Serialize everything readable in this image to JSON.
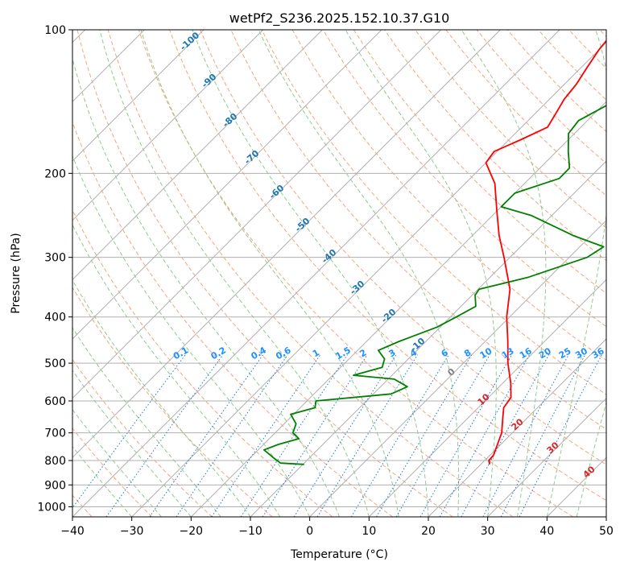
{
  "chart_data": {
    "type": "line",
    "subtype": "skew-t log-p",
    "title": "wetPf2_S236.2025.152.10.37.G10",
    "xlabel": "Temperature (°C)",
    "ylabel": "Pressure (hPa)",
    "xlim": [
      -40,
      50
    ],
    "ylim": [
      1050,
      100
    ],
    "yscale": "log",
    "grid": true,
    "x_ticks": [
      "−40",
      "−30",
      "−20",
      "−10",
      "0",
      "10",
      "20",
      "30",
      "40",
      "50"
    ],
    "x_tick_values": [
      -40,
      -30,
      -20,
      -10,
      0,
      10,
      20,
      30,
      40,
      50
    ],
    "y_ticks": [
      "1000",
      "900",
      "800",
      "700",
      "600",
      "500",
      "400",
      "300",
      "200",
      "100"
    ],
    "y_tick_values": [
      1000,
      900,
      800,
      700,
      600,
      500,
      400,
      300,
      200,
      100
    ],
    "series": [
      {
        "color": "#ff0000",
        "points": [
          {
            "p": 815,
            "t": 21.5
          },
          {
            "p": 800,
            "t": 20.7
          },
          {
            "p": 780,
            "t": 20.6
          },
          {
            "p": 700,
            "t": 18.2
          },
          {
            "p": 650,
            "t": 15.8
          },
          {
            "p": 620,
            "t": 14.3
          },
          {
            "p": 590,
            "t": 13.8
          },
          {
            "p": 550,
            "t": 11.3
          },
          {
            "p": 500,
            "t": 7.5
          },
          {
            "p": 450,
            "t": 3.8
          },
          {
            "p": 400,
            "t": -0.5
          },
          {
            "p": 350,
            "t": -4.6
          },
          {
            "p": 300,
            "t": -11.0
          },
          {
            "p": 270,
            "t": -15.5
          },
          {
            "p": 240,
            "t": -20.0
          },
          {
            "p": 210,
            "t": -25.0
          },
          {
            "p": 190,
            "t": -30.0
          },
          {
            "p": 180,
            "t": -30.5
          },
          {
            "p": 170,
            "t": -28.0
          },
          {
            "p": 160,
            "t": -25.6
          },
          {
            "p": 150,
            "t": -26.5
          },
          {
            "p": 140,
            "t": -27.5
          },
          {
            "p": 130,
            "t": -28.0
          },
          {
            "p": 120,
            "t": -29.0
          },
          {
            "p": 110,
            "t": -30.0
          },
          {
            "p": 100,
            "t": -30.6
          }
        ]
      },
      {
        "color": "#008000",
        "points": [
          {
            "p": 815,
            "t": -9.8
          },
          {
            "p": 810,
            "t": -14.0
          },
          {
            "p": 790,
            "t": -16.0
          },
          {
            "p": 760,
            "t": -19.0
          },
          {
            "p": 740,
            "t": -17.5
          },
          {
            "p": 720,
            "t": -15.0
          },
          {
            "p": 700,
            "t": -17.0
          },
          {
            "p": 670,
            "t": -18.0
          },
          {
            "p": 640,
            "t": -20.5
          },
          {
            "p": 620,
            "t": -17.5
          },
          {
            "p": 600,
            "t": -18.5
          },
          {
            "p": 580,
            "t": -7.0
          },
          {
            "p": 560,
            "t": -5.5
          },
          {
            "p": 540,
            "t": -9.0
          },
          {
            "p": 530,
            "t": -16.5
          },
          {
            "p": 510,
            "t": -13.0
          },
          {
            "p": 490,
            "t": -14.0
          },
          {
            "p": 470,
            "t": -16.5
          },
          {
            "p": 450,
            "t": -14.5
          },
          {
            "p": 420,
            "t": -10.5
          },
          {
            "p": 400,
            "t": -9.0
          },
          {
            "p": 380,
            "t": -7.5
          },
          {
            "p": 360,
            "t": -9.5
          },
          {
            "p": 350,
            "t": -9.8
          },
          {
            "p": 330,
            "t": -3.5
          },
          {
            "p": 300,
            "t": 3.0
          },
          {
            "p": 285,
            "t": 4.0
          },
          {
            "p": 270,
            "t": -3.0
          },
          {
            "p": 245,
            "t": -13.5
          },
          {
            "p": 235,
            "t": -20.0
          },
          {
            "p": 220,
            "t": -20.0
          },
          {
            "p": 205,
            "t": -15.0
          },
          {
            "p": 195,
            "t": -15.0
          },
          {
            "p": 180,
            "t": -18.0
          },
          {
            "p": 165,
            "t": -21.0
          },
          {
            "p": 155,
            "t": -21.5
          },
          {
            "p": 145,
            "t": -19.5
          },
          {
            "p": 135,
            "t": -17.5
          },
          {
            "p": 125,
            "t": -15.0
          },
          {
            "p": 115,
            "t": -11.5
          },
          {
            "p": 105,
            "t": -8.0
          },
          {
            "p": 100,
            "t": -6.5
          }
        ]
      }
    ],
    "isotherm_labels": [
      {
        "text": "-100",
        "t": -100
      },
      {
        "text": "-90",
        "t": -90
      },
      {
        "text": "-80",
        "t": -80
      },
      {
        "text": "-70",
        "t": -70
      },
      {
        "text": "-60",
        "t": -60
      },
      {
        "text": "-50",
        "t": -50
      },
      {
        "text": "-40",
        "t": -40
      },
      {
        "text": "-30",
        "t": -30
      },
      {
        "text": "-20",
        "t": -20
      },
      {
        "text": "-10",
        "t": -10
      }
    ],
    "isotherm_label_color": "#1f77b4",
    "mixing_ratio_labels": [
      "0.1",
      "0.2",
      "0.4",
      "0.6",
      "1",
      "1.5",
      "2",
      "3",
      "4",
      "6",
      "8",
      "10",
      "13",
      "16",
      "20",
      "25",
      "30",
      "36"
    ],
    "mixing_ratio_values": [
      0.1,
      0.2,
      0.4,
      0.6,
      1,
      1.5,
      2,
      3,
      4,
      6,
      8,
      10,
      13,
      16,
      20,
      25,
      30,
      36
    ],
    "mixing_ratio_label_color": "#1e90ff",
    "warm_isotherm_labels": [
      {
        "text": "0",
        "t": 0,
        "color": "#808080"
      },
      {
        "text": "10",
        "t": 10,
        "color": "#d62728"
      },
      {
        "text": "20",
        "t": 20,
        "color": "#d62728"
      },
      {
        "text": "30",
        "t": 30,
        "color": "#d62728"
      },
      {
        "text": "40",
        "t": 40,
        "color": "#d62728"
      }
    ],
    "colors": {
      "isotherm": "#b0b0b0",
      "dry_adiabat": "#f4a582",
      "moist_adiabat": "#8fcc8f",
      "mixing_ratio": "#1e78dc"
    }
  }
}
